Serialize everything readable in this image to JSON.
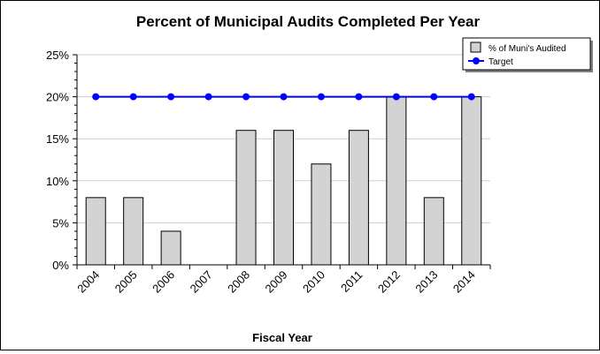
{
  "chart_data": {
    "type": "bar",
    "title": "Percent of Municipal Audits Completed Per Year",
    "xlabel": "Fiscal Year",
    "ylabel": "",
    "categories": [
      "2004",
      "2005",
      "2006",
      "2007",
      "2008",
      "2009",
      "2010",
      "2011",
      "2012",
      "2013",
      "2014"
    ],
    "series": [
      {
        "name": "% of Muni's Audited",
        "type": "bar",
        "values": [
          8,
          8,
          4,
          0,
          16,
          16,
          12,
          16,
          20,
          8,
          20
        ]
      },
      {
        "name": "Target",
        "type": "line",
        "values": [
          20,
          20,
          20,
          20,
          20,
          20,
          20,
          20,
          20,
          20,
          20
        ]
      }
    ],
    "ylim": [
      0,
      25
    ],
    "yticks": [
      0,
      5,
      10,
      15,
      20,
      25
    ],
    "ytick_labels": [
      "0%",
      "5%",
      "10%",
      "15%",
      "20%",
      "25%"
    ],
    "grid": true,
    "legend_position": "top-right",
    "colors": {
      "bar_fill": "#d3d3d3",
      "bar_stroke": "#000000",
      "line": "#0000ff",
      "marker": "#0000ff",
      "grid": "#cfcfcf"
    }
  }
}
